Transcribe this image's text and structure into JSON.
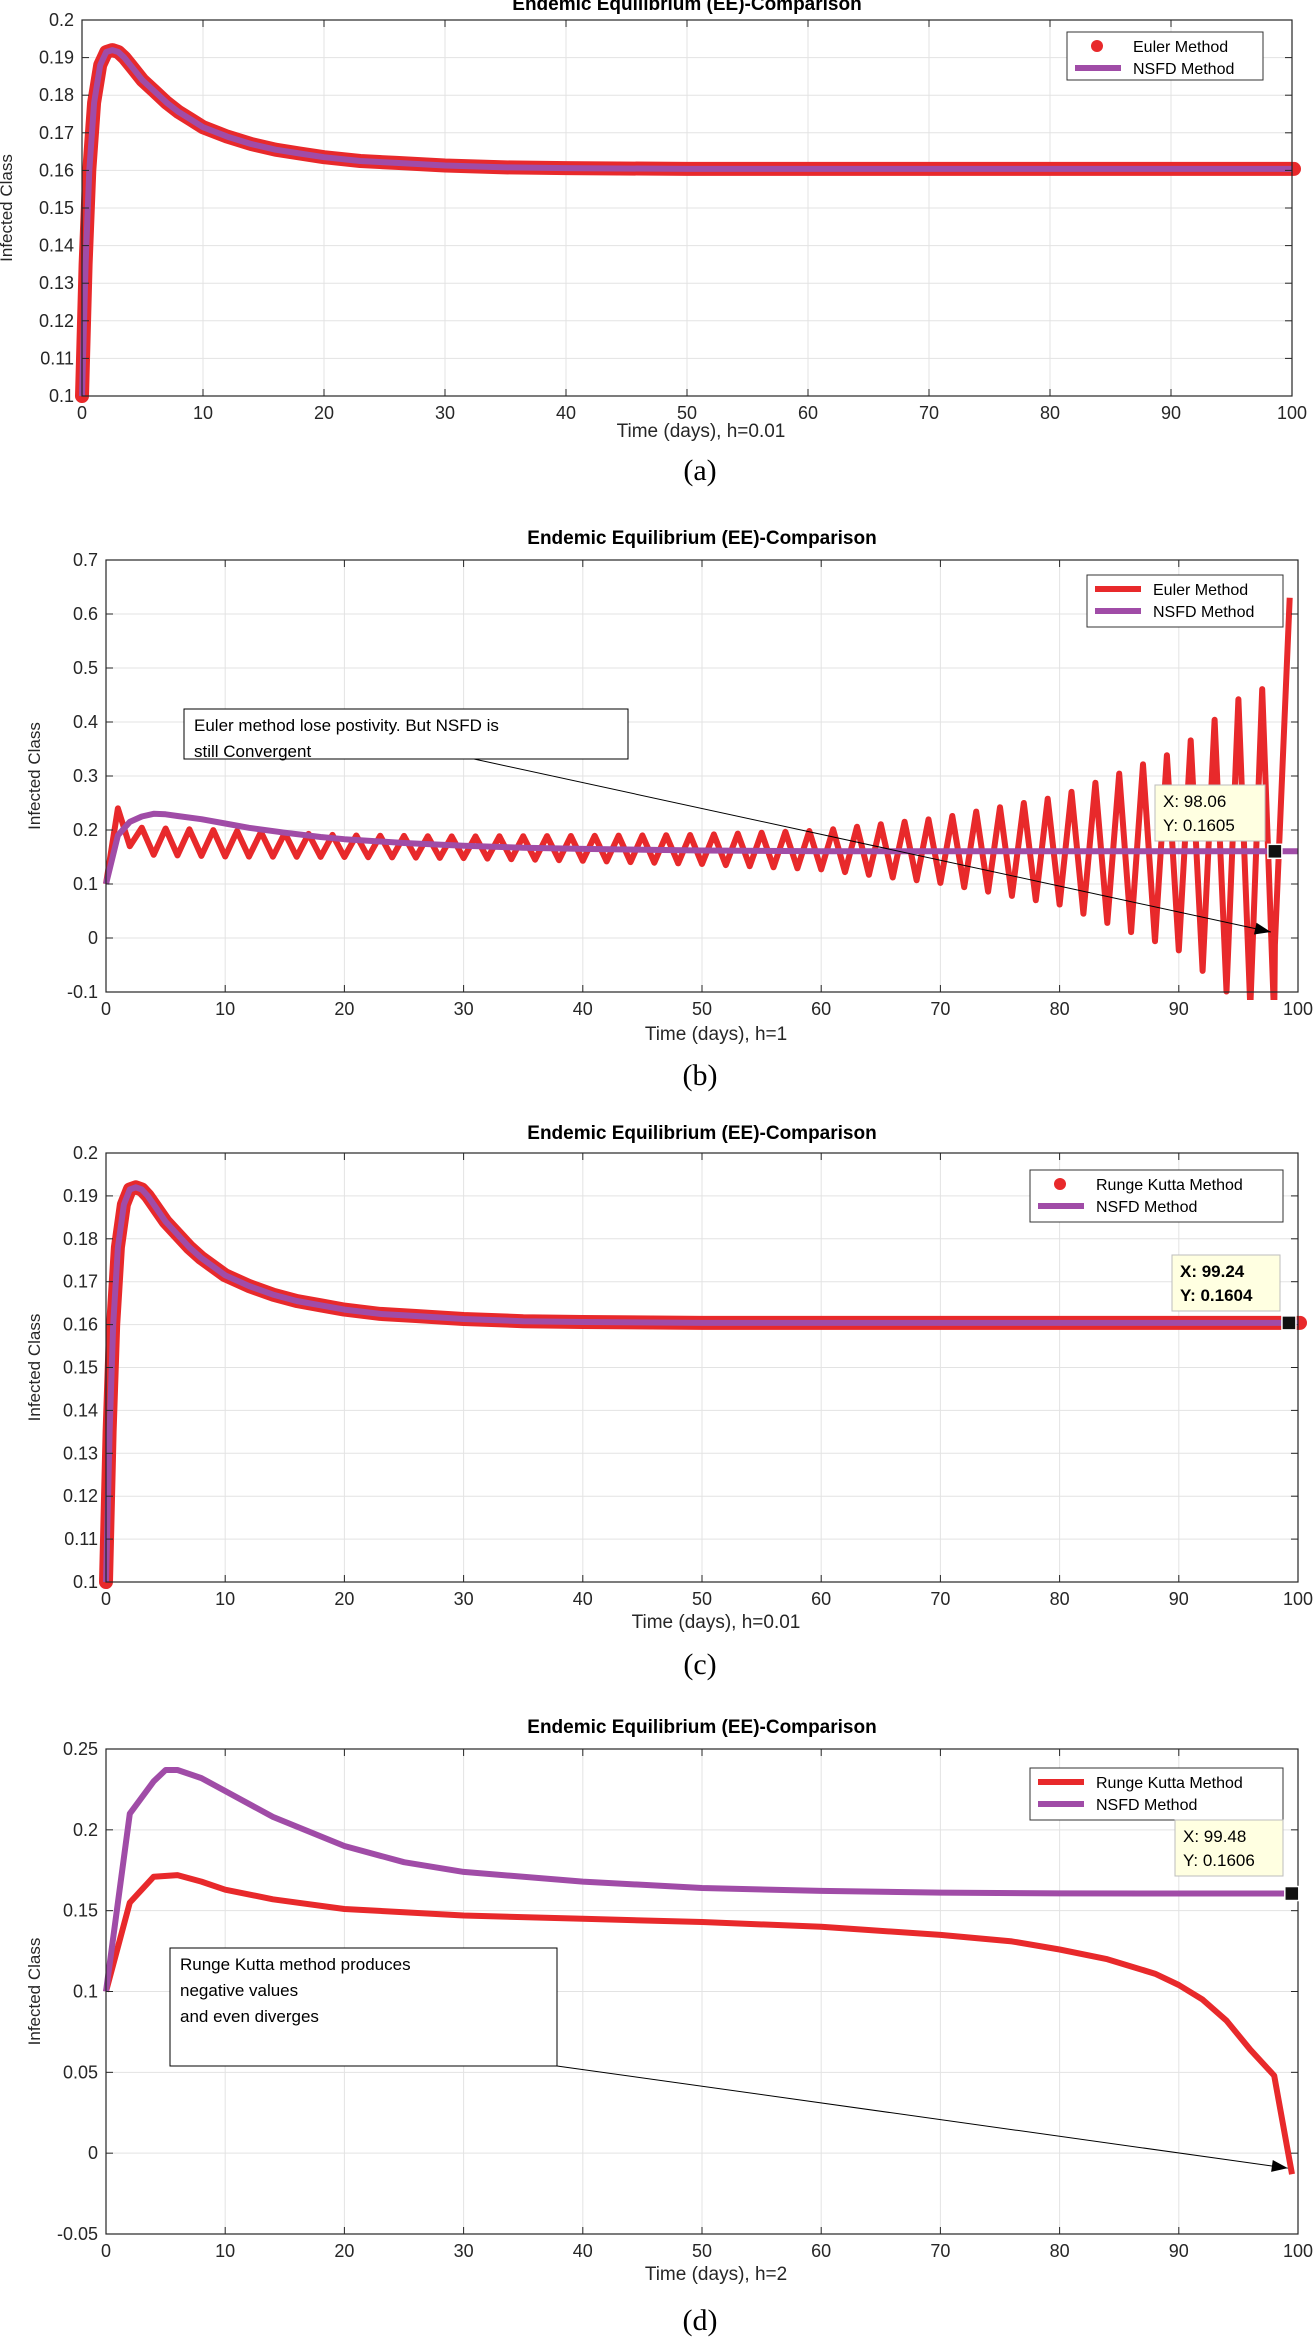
{
  "chart_data": [
    {
      "panel_label": "(a)",
      "type": "line",
      "title": "Endemic Equilibrium (EE)-Comparison",
      "xlabel": "Time (days), h=0.01",
      "ylabel": "Infected Class",
      "xlim": [
        0,
        100
      ],
      "ylim": [
        0.1,
        0.2
      ],
      "xticks": [
        0,
        10,
        20,
        30,
        40,
        50,
        60,
        70,
        80,
        90,
        100
      ],
      "yticks": [
        0.1,
        0.11,
        0.12,
        0.13,
        0.14,
        0.15,
        0.16,
        0.17,
        0.18,
        0.19,
        0.2
      ],
      "yticklabels": [
        "0.1",
        "0.11",
        "0.12",
        "0.13",
        "0.14",
        "0.15",
        "0.16",
        "0.17",
        "0.18",
        "0.19",
        "0.2"
      ],
      "grid": true,
      "legend": [
        {
          "label": "Euler Method",
          "color": "#e8292b",
          "style": "markers"
        },
        {
          "label": "NSFD Method",
          "color": "#a04ca7",
          "style": "line"
        }
      ],
      "legend_position": "top-right",
      "series": [
        {
          "name": "Euler Method",
          "color": "#e8292b",
          "style": "markers",
          "x": [
            0,
            0.3,
            0.6,
            1,
            1.5,
            2,
            2.5,
            3,
            3.5,
            4,
            5,
            6,
            7,
            8,
            9,
            10,
            12,
            14,
            16,
            18,
            20,
            23,
            26,
            30,
            35,
            40,
            50,
            60,
            70,
            80,
            90,
            100
          ],
          "y": [
            0.1,
            0.135,
            0.16,
            0.178,
            0.188,
            0.1915,
            0.192,
            0.1915,
            0.19,
            0.188,
            0.184,
            0.181,
            0.178,
            0.1755,
            0.1735,
            0.1715,
            0.169,
            0.167,
            0.1655,
            0.1645,
            0.1635,
            0.1625,
            0.162,
            0.1613,
            0.1608,
            0.1606,
            0.1604,
            0.1604,
            0.1604,
            0.1604,
            0.1604,
            0.1604
          ]
        },
        {
          "name": "NSFD Method",
          "color": "#a04ca7",
          "style": "line",
          "x": [
            0,
            0.3,
            0.6,
            1,
            1.5,
            2,
            2.5,
            3,
            3.5,
            4,
            5,
            6,
            7,
            8,
            9,
            10,
            12,
            14,
            16,
            18,
            20,
            23,
            26,
            30,
            35,
            40,
            50,
            60,
            70,
            80,
            90,
            100
          ],
          "y": [
            0.1,
            0.135,
            0.16,
            0.178,
            0.188,
            0.1915,
            0.192,
            0.1915,
            0.19,
            0.188,
            0.184,
            0.181,
            0.178,
            0.1755,
            0.1735,
            0.1715,
            0.169,
            0.167,
            0.1655,
            0.1645,
            0.1635,
            0.1625,
            0.162,
            0.1613,
            0.1608,
            0.1606,
            0.1604,
            0.1604,
            0.1604,
            0.1604,
            0.1604,
            0.1604
          ]
        }
      ]
    },
    {
      "panel_label": "(b)",
      "type": "line",
      "title": "Endemic Equilibrium (EE)-Comparison",
      "xlabel": "Time (days), h=1",
      "ylabel": "Infected Class",
      "xlim": [
        0,
        100
      ],
      "ylim": [
        -0.1,
        0.7
      ],
      "xticks": [
        0,
        10,
        20,
        30,
        40,
        50,
        60,
        70,
        80,
        90,
        100
      ],
      "yticks": [
        -0.1,
        0,
        0.1,
        0.2,
        0.3,
        0.4,
        0.5,
        0.6,
        0.7
      ],
      "yticklabels": [
        "-0.1",
        "0",
        "0.1",
        "0.2",
        "0.3",
        "0.4",
        "0.5",
        "0.6",
        "0.7"
      ],
      "grid": true,
      "legend": [
        {
          "label": "Euler Method",
          "color": "#e8292b",
          "style": "line"
        },
        {
          "label": "NSFD Method",
          "color": "#a04ca7",
          "style": "line"
        }
      ],
      "legend_position": "top-right",
      "annotation": {
        "lines": [
          "Euler method lose postivity. But NSFD is",
          "still Convergent"
        ],
        "arrow_to": [
          98.06,
          0
        ]
      },
      "datatip": {
        "x_label": "X: 98.06",
        "y_label": "Y: 0.1605",
        "x": 98.06,
        "y": 0.1605
      },
      "series": [
        {
          "name": "Euler Method",
          "color": "#e8292b",
          "style": "oscillating-line",
          "x_start": 0,
          "step": 1,
          "initial": [
            0.1,
            0.24,
            0.17
          ],
          "envelope_x": [
            2,
            10,
            20,
            30,
            40,
            50,
            60,
            70,
            80,
            90,
            95,
            99
          ],
          "envelope_amp": [
            0.025,
            0.024,
            0.02,
            0.02,
            0.023,
            0.027,
            0.036,
            0.06,
            0.1,
            0.185,
            0.28,
            0.32
          ],
          "envelope_mid": [
            0.18,
            0.175,
            0.17,
            0.168,
            0.166,
            0.164,
            0.163,
            0.162,
            0.162,
            0.162,
            0.162,
            0.16
          ]
        },
        {
          "name": "NSFD Method",
          "color": "#a04ca7",
          "style": "line",
          "x": [
            0,
            1,
            2,
            3,
            4,
            5,
            6,
            8,
            10,
            12,
            15,
            18,
            20,
            25,
            30,
            35,
            40,
            50,
            60,
            70,
            80,
            90,
            100
          ],
          "y": [
            0.1,
            0.19,
            0.215,
            0.225,
            0.23,
            0.229,
            0.226,
            0.22,
            0.212,
            0.204,
            0.195,
            0.187,
            0.183,
            0.176,
            0.171,
            0.167,
            0.165,
            0.162,
            0.1608,
            0.1605,
            0.1605,
            0.1605,
            0.1605
          ]
        }
      ]
    },
    {
      "panel_label": "(c)",
      "type": "line",
      "title": "Endemic Equilibrium (EE)-Comparison",
      "xlabel": "Time (days), h=0.01",
      "ylabel": "Infected Class",
      "xlim": [
        0,
        100
      ],
      "ylim": [
        0.1,
        0.2
      ],
      "xticks": [
        0,
        10,
        20,
        30,
        40,
        50,
        60,
        70,
        80,
        90,
        100
      ],
      "yticks": [
        0.1,
        0.11,
        0.12,
        0.13,
        0.14,
        0.15,
        0.16,
        0.17,
        0.18,
        0.19,
        0.2
      ],
      "yticklabels": [
        "0.1",
        "0.11",
        "0.12",
        "0.13",
        "0.14",
        "0.15",
        "0.16",
        "0.17",
        "0.18",
        "0.19",
        "0.2"
      ],
      "grid": true,
      "legend": [
        {
          "label": "Runge Kutta Method",
          "color": "#e8292b",
          "style": "markers"
        },
        {
          "label": "NSFD Method",
          "color": "#a04ca7",
          "style": "line"
        }
      ],
      "legend_position": "top-right",
      "datatip": {
        "x_label": "X: 99.24",
        "y_label": "Y: 0.1604",
        "x": 99.24,
        "y": 0.1604
      },
      "series": [
        {
          "name": "Runge Kutta Method",
          "color": "#e8292b",
          "style": "markers",
          "x": [
            0,
            0.3,
            0.6,
            1,
            1.5,
            2,
            2.5,
            3,
            3.5,
            4,
            5,
            6,
            7,
            8,
            9,
            10,
            12,
            14,
            16,
            18,
            20,
            23,
            26,
            30,
            35,
            40,
            50,
            60,
            70,
            80,
            90,
            100
          ],
          "y": [
            0.1,
            0.135,
            0.16,
            0.178,
            0.188,
            0.1915,
            0.192,
            0.1915,
            0.19,
            0.188,
            0.184,
            0.181,
            0.178,
            0.1755,
            0.1735,
            0.1715,
            0.169,
            0.167,
            0.1655,
            0.1645,
            0.1635,
            0.1625,
            0.162,
            0.1613,
            0.1608,
            0.1606,
            0.1604,
            0.1604,
            0.1604,
            0.1604,
            0.1604,
            0.1604
          ]
        },
        {
          "name": "NSFD Method",
          "color": "#a04ca7",
          "style": "line",
          "x": [
            0,
            0.3,
            0.6,
            1,
            1.5,
            2,
            2.5,
            3,
            3.5,
            4,
            5,
            6,
            7,
            8,
            9,
            10,
            12,
            14,
            16,
            18,
            20,
            23,
            26,
            30,
            35,
            40,
            50,
            60,
            70,
            80,
            90,
            100
          ],
          "y": [
            0.1,
            0.135,
            0.16,
            0.178,
            0.188,
            0.1915,
            0.192,
            0.1915,
            0.19,
            0.188,
            0.184,
            0.181,
            0.178,
            0.1755,
            0.1735,
            0.1715,
            0.169,
            0.167,
            0.1655,
            0.1645,
            0.1635,
            0.1625,
            0.162,
            0.1613,
            0.1608,
            0.1606,
            0.1604,
            0.1604,
            0.1604,
            0.1604,
            0.1604,
            0.1604
          ]
        }
      ]
    },
    {
      "panel_label": "(d)",
      "type": "line",
      "title": "Endemic Equilibrium (EE)-Comparison",
      "xlabel": "Time (days), h=2",
      "ylabel": "Infected Class",
      "xlim": [
        0,
        100
      ],
      "ylim": [
        -0.05,
        0.25
      ],
      "xticks": [
        0,
        10,
        20,
        30,
        40,
        50,
        60,
        70,
        80,
        90,
        100
      ],
      "yticks": [
        -0.05,
        0,
        0.05,
        0.1,
        0.15,
        0.2,
        0.25
      ],
      "yticklabels": [
        "-0.05",
        "0",
        "0.05",
        "0.1",
        "0.15",
        "0.2",
        "0.25"
      ],
      "grid": true,
      "legend": [
        {
          "label": "Runge Kutta Method",
          "color": "#e8292b",
          "style": "line"
        },
        {
          "label": "NSFD Method",
          "color": "#a04ca7",
          "style": "line"
        }
      ],
      "legend_position": "top-right",
      "annotation": {
        "lines": [
          "Runge Kutta method produces",
          "negative values",
          "and even diverges"
        ],
        "arrow_to": [
          99.48,
          -0.013
        ]
      },
      "datatip": {
        "x_label": "X: 99.48",
        "y_label": "Y: 0.1606",
        "x": 99.48,
        "y": 0.1606
      },
      "series": [
        {
          "name": "Runge Kutta Method",
          "color": "#e8292b",
          "style": "line",
          "x": [
            0,
            2,
            4,
            6,
            8,
            10,
            14,
            20,
            30,
            40,
            50,
            60,
            70,
            76,
            80,
            84,
            88,
            90,
            92,
            94,
            96,
            98,
            99.5
          ],
          "y": [
            0.1,
            0.155,
            0.171,
            0.172,
            0.168,
            0.163,
            0.157,
            0.151,
            0.147,
            0.145,
            0.143,
            0.14,
            0.135,
            0.131,
            0.126,
            0.12,
            0.111,
            0.104,
            0.095,
            0.082,
            0.064,
            0.048,
            -0.013
          ]
        },
        {
          "name": "NSFD Method",
          "color": "#a04ca7",
          "style": "line",
          "x": [
            0,
            2,
            4,
            5,
            6,
            8,
            10,
            14,
            20,
            25,
            30,
            40,
            50,
            60,
            70,
            80,
            90,
            99.5
          ],
          "y": [
            0.1,
            0.21,
            0.23,
            0.237,
            0.237,
            0.232,
            0.224,
            0.208,
            0.19,
            0.18,
            0.174,
            0.168,
            0.164,
            0.1622,
            0.1612,
            0.1607,
            0.1606,
            0.1606
          ]
        }
      ]
    }
  ],
  "colors": {
    "euler": "#e8292b",
    "nsfd": "#a04ca7",
    "grid": "#e3e3e3",
    "axis": "#262626",
    "tip_bg": "#ffffe1"
  }
}
